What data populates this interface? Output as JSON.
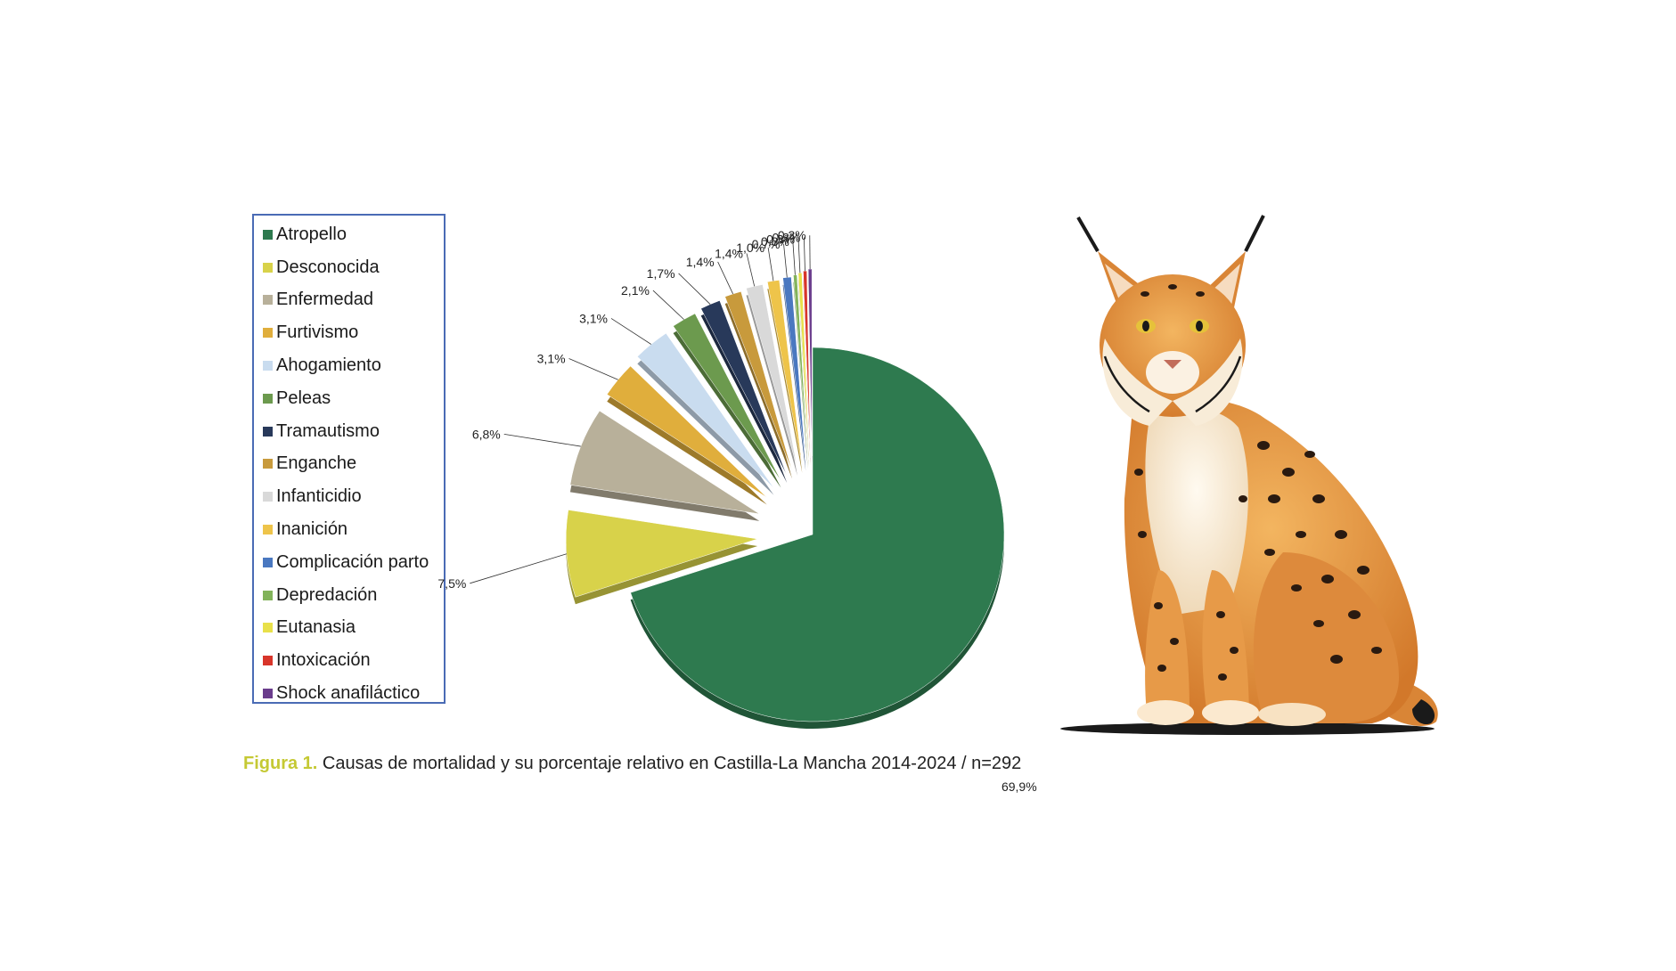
{
  "chart_data": {
    "type": "pie",
    "categories": [
      "Atropello",
      "Desconocida",
      "Enfermedad",
      "Furtivismo",
      "Ahogamiento",
      "Peleas",
      "Tramautismo",
      "Enganche",
      "Infanticidio",
      "Inanición",
      "Complicación parto",
      "Depredación",
      "Eutanasia",
      "Intoxicación",
      "Shock anafiláctico"
    ],
    "values": [
      69.9,
      7.5,
      6.8,
      3.1,
      3.1,
      2.1,
      1.7,
      1.4,
      1.4,
      1.0,
      0.7,
      0.3,
      0.3,
      0.3,
      0.3
    ],
    "value_labels": [
      "69,9%",
      "7,5%",
      "6,8%",
      "3,1%",
      "3,1%",
      "2,1%",
      "1,7%",
      "1,4%",
      "1,4%",
      "1,0%",
      "0,7%",
      "0,3%",
      "0,3%",
      "0,3%",
      "0,3%"
    ],
    "colors": [
      "#2e7a4f",
      "#d8d24a",
      "#b8b09a",
      "#e0ae3c",
      "#c9dcef",
      "#6c9a4e",
      "#28395a",
      "#c89a3c",
      "#d9d9d9",
      "#eec44a",
      "#4a78c0",
      "#82b35a",
      "#e8e04a",
      "#d8352a",
      "#6a3c8c"
    ],
    "legend_position": "left",
    "exploded": true
  },
  "caption": {
    "label": "Figura 1.",
    "text": "Causas de mortalidad y su porcentaje relativo en Castilla-La Mancha 2014-2024 / n=292"
  },
  "illustration": {
    "icon": "iberian-lynx-illustration"
  }
}
